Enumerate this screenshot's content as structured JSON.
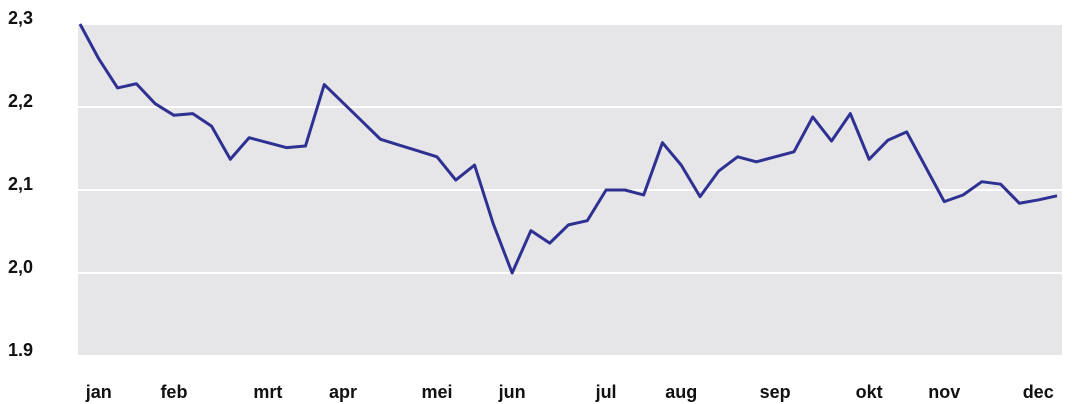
{
  "chart_data": {
    "type": "line",
    "categories": [
      null,
      "jan",
      null,
      null,
      null,
      "feb",
      null,
      null,
      null,
      null,
      "mrt",
      null,
      null,
      null,
      "apr",
      null,
      null,
      null,
      null,
      "mei",
      null,
      null,
      null,
      "jun",
      null,
      null,
      null,
      null,
      "jul",
      null,
      null,
      null,
      "aug",
      null,
      null,
      null,
      null,
      "sep",
      null,
      null,
      null,
      null,
      "okt",
      null,
      null,
      null,
      "nov",
      null,
      null,
      null,
      null,
      "dec",
      null
    ],
    "series": [
      {
        "color": "#2e3192",
        "values": [
          2.3,
          2.258,
          2.223,
          2.228,
          2.204,
          2.19,
          2.192,
          2.177,
          2.137,
          2.163,
          2.157,
          2.151,
          2.153,
          2.227,
          2.205,
          2.183,
          2.161,
          2.154,
          2.147,
          2.14,
          2.112,
          2.13,
          2.059,
          2.0,
          2.051,
          2.036,
          2.058,
          2.063,
          2.1,
          2.1,
          2.094,
          2.157,
          2.13,
          2.092,
          2.123,
          2.14,
          2.134,
          2.14,
          2.146,
          2.188,
          2.159,
          2.192,
          2.137,
          2.16,
          2.17,
          2.128,
          2.086,
          2.094,
          2.11,
          2.107,
          2.084,
          2.088,
          2.093
        ]
      }
    ],
    "ylim": [
      1.9,
      2.3
    ],
    "yticks": [
      {
        "value": 1.9,
        "label": "1.9"
      },
      {
        "value": 2.0,
        "label": "2,0"
      },
      {
        "value": 2.1,
        "label": "2,1"
      },
      {
        "value": 2.2,
        "label": "2,2"
      },
      {
        "value": 2.3,
        "label": "2,3"
      }
    ],
    "grid": true
  }
}
